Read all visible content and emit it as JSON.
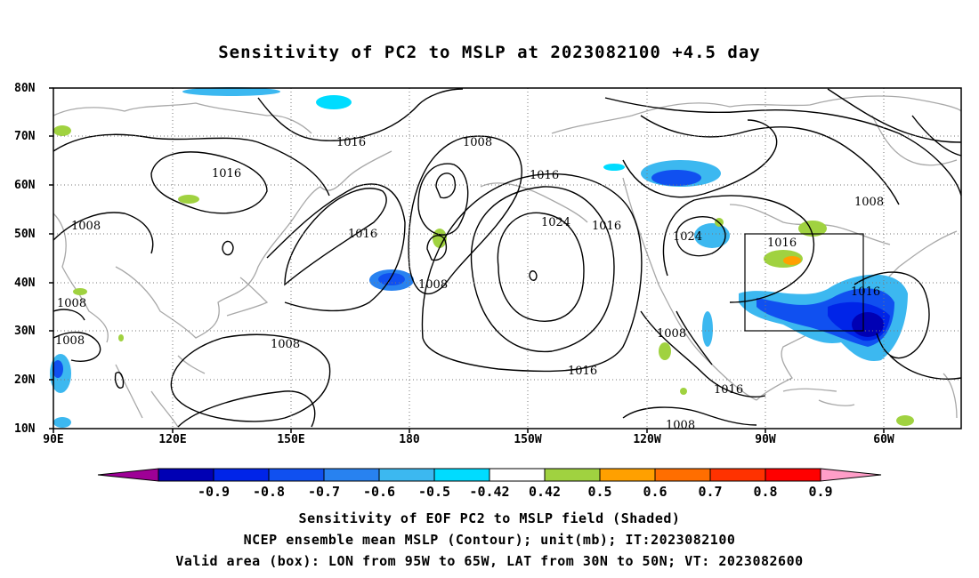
{
  "title": "Sensitivity of PC2 to MSLP at 2023082100 +4.5 day",
  "lat_labels": [
    "80N",
    "70N",
    "60N",
    "50N",
    "40N",
    "30N",
    "20N",
    "10N"
  ],
  "lon_labels": [
    "90E",
    "120E",
    "150E",
    "180",
    "150W",
    "120W",
    "90W",
    "60W"
  ],
  "contour_labels": [
    "1016",
    "1016",
    "1008",
    "1016",
    "1008",
    "1016",
    "1016",
    "1024",
    "1016",
    "1024",
    "1016",
    "1008",
    "1008",
    "1008",
    "1008",
    "1008",
    "1016",
    "1008",
    "1016",
    "1008"
  ],
  "colorbar": {
    "labels": [
      "-0.9",
      "-0.8",
      "-0.7",
      "-0.6",
      "-0.5",
      "-0.42",
      "0.42",
      "0.5",
      "0.6",
      "0.7",
      "0.8",
      "0.9"
    ],
    "colors": [
      "#9e0096",
      "#0000b4",
      "#0024e8",
      "#1050f0",
      "#2882f0",
      "#3cb8f0",
      "#00dcff",
      "#ffffff",
      "#a0d240",
      "#ffa000",
      "#ff6e00",
      "#ff3200",
      "#ff0000",
      "#ff9ec8"
    ]
  },
  "captions": [
    "Sensitivity of EOF PC2 to MSLP field (Shaded)",
    "NCEP ensemble mean MSLP (Contour); unit(mb); IT:2023082100",
    "Valid area (box): LON from 95W to 65W, LAT from 30N to 50N; VT: 2023082600"
  ],
  "valid_box": {
    "lon_min": -95,
    "lon_max": -65,
    "lat_min": 30,
    "lat_max": 50
  }
}
